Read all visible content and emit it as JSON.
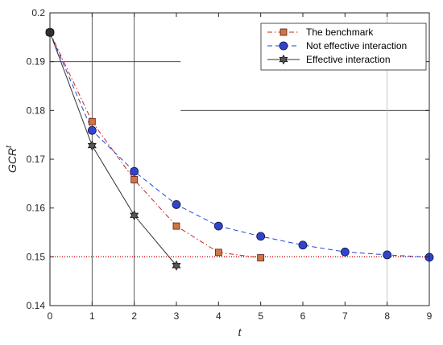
{
  "chart_data": {
    "type": "line",
    "xlabel": "t",
    "ylabel": "GCR",
    "ylabel_superscript": "t",
    "xlim": [
      0,
      9
    ],
    "ylim": [
      0.14,
      0.2
    ],
    "xticks": [
      "0",
      "1",
      "2",
      "3",
      "4",
      "5",
      "6",
      "7",
      "8",
      "9"
    ],
    "yticks": [
      "0.14",
      "0.15",
      "0.16",
      "0.17",
      "0.18",
      "0.19",
      "0.2"
    ],
    "legend_position": "top-right",
    "series": [
      {
        "name": "The benchmark",
        "color": "#cc2222",
        "marker": "square",
        "marker_fill": "#cc7744",
        "line_style": "dash-dot",
        "x": [
          0,
          1,
          2,
          3,
          4,
          5
        ],
        "y": [
          0.196,
          0.1777,
          0.1658,
          0.1563,
          0.1509,
          0.1498
        ]
      },
      {
        "name": "Not effective interaction",
        "color": "#2244cc",
        "marker": "circle",
        "marker_fill": "#3344cc",
        "line_style": "dashed",
        "x": [
          0,
          1,
          2,
          3,
          4,
          5,
          6,
          7,
          8,
          9
        ],
        "y": [
          0.196,
          0.1759,
          0.1675,
          0.1607,
          0.1563,
          0.1542,
          0.1524,
          0.151,
          0.1504,
          0.1499
        ]
      },
      {
        "name": "Effective interaction",
        "color": "#333333",
        "marker": "hexagram",
        "marker_fill": "#555555",
        "line_style": "solid",
        "x": [
          0,
          1,
          2,
          3
        ],
        "y": [
          0.196,
          0.1728,
          0.1585,
          0.1482
        ]
      }
    ],
    "reference_lines": {
      "horizontal": [
        {
          "y": 0.15,
          "x_range": [
            0,
            9
          ],
          "color": "#cc0000",
          "style": "dotted"
        },
        {
          "y": 0.19,
          "x_range": [
            0,
            3.1
          ],
          "color": "#333333",
          "style": "solid"
        },
        {
          "y": 0.18,
          "x_range": [
            3.1,
            9
          ],
          "color": "#333333",
          "style": "solid"
        }
      ],
      "vertical": [
        {
          "x": 1,
          "color": "#333333",
          "style": "solid"
        },
        {
          "x": 2,
          "color": "#333333",
          "style": "solid"
        },
        {
          "x": 8,
          "color": "#bbbbbb",
          "style": "solid"
        }
      ]
    }
  }
}
